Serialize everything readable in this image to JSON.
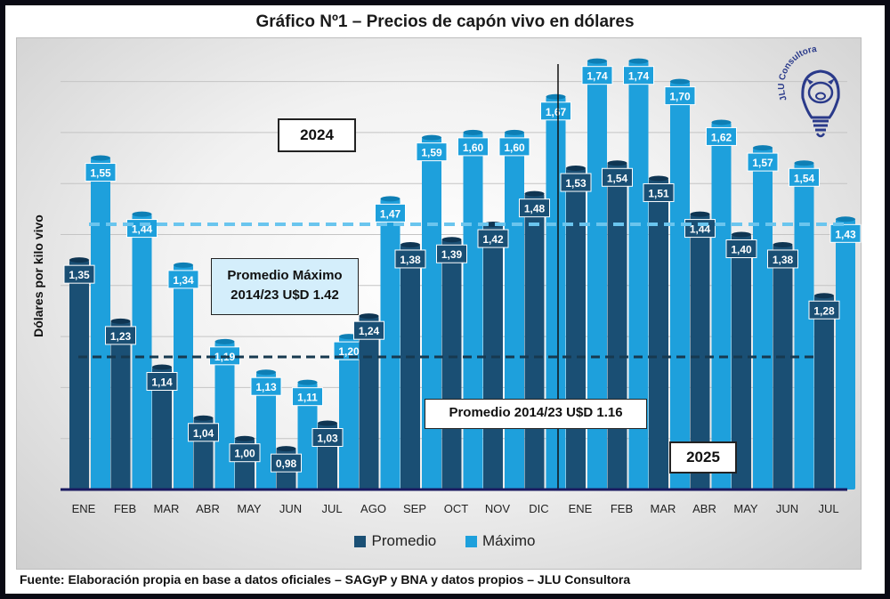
{
  "title": "Gráfico Nº1 – Precios de capón vivo en dólares",
  "source": "Fuente: Elaboración propia en base a datos oficiales – SAGyP y BNA y datos propios – JLU Consultora",
  "annotations": {
    "year_2024": "2024",
    "year_2025": "2025",
    "avg_max_line1": "Promedio Máximo",
    "avg_max_line2": "2014/23 U$D 1.42",
    "avg": "Promedio 2014/23 U$D 1.16"
  },
  "logo_text": "JLU Consultora",
  "colors": {
    "promedio": "#1a4f74",
    "maximo": "#1ea0dc",
    "avg_max_line": "#6ac5ee",
    "avg_line": "#17394f",
    "axis": "#1a1a60"
  },
  "chart_data": {
    "type": "bar",
    "categories": [
      "ENE",
      "FEB",
      "MAR",
      "ABR",
      "MAY",
      "JUN",
      "JUL",
      "AGO",
      "SEP",
      "OCT",
      "NOV",
      "DIC",
      "ENE",
      "FEB",
      "MAR",
      "ABR",
      "MAY",
      "JUN",
      "JUL"
    ],
    "series": [
      {
        "name": "Promedio",
        "values": [
          1.35,
          1.23,
          1.14,
          1.04,
          1.0,
          0.98,
          1.03,
          1.24,
          1.38,
          1.39,
          1.42,
          1.48,
          1.53,
          1.54,
          1.51,
          1.44,
          1.4,
          1.38,
          1.28
        ],
        "labels": [
          "1,35",
          "1,23",
          "1,14",
          "1,04",
          "1,00",
          "0,98",
          "1,03",
          "1,24",
          "1,38",
          "1,39",
          "1,42",
          "1,48",
          "1,53",
          "1,54",
          "1,51",
          "1,44",
          "1,40",
          "1,38",
          "1,28"
        ]
      },
      {
        "name": "Máximo",
        "values": [
          1.55,
          1.44,
          1.34,
          1.19,
          1.13,
          1.11,
          1.2,
          1.47,
          1.59,
          1.6,
          1.6,
          1.67,
          1.74,
          1.74,
          1.7,
          1.62,
          1.57,
          1.54,
          1.43
        ],
        "labels": [
          "1,55",
          "1,44",
          "1,34",
          "1,19",
          "1,13",
          "1,11",
          "1,20",
          "1,47",
          "1,59",
          "1,60",
          "1,60",
          "1,67",
          "1,74",
          "1,74",
          "1,70",
          "1,62",
          "1,57",
          "1,54",
          "1,43"
        ]
      }
    ],
    "ylabel": "Dólares por kilo vivo",
    "ylim": [
      0.9,
      1.8
    ],
    "reference_lines": [
      {
        "label": "Promedio Máximo 2014/23 U$D 1.42",
        "value": 1.42
      },
      {
        "label": "Promedio 2014/23 U$D 1.16",
        "value": 1.16
      }
    ],
    "grid": true,
    "legend": "bottom"
  }
}
